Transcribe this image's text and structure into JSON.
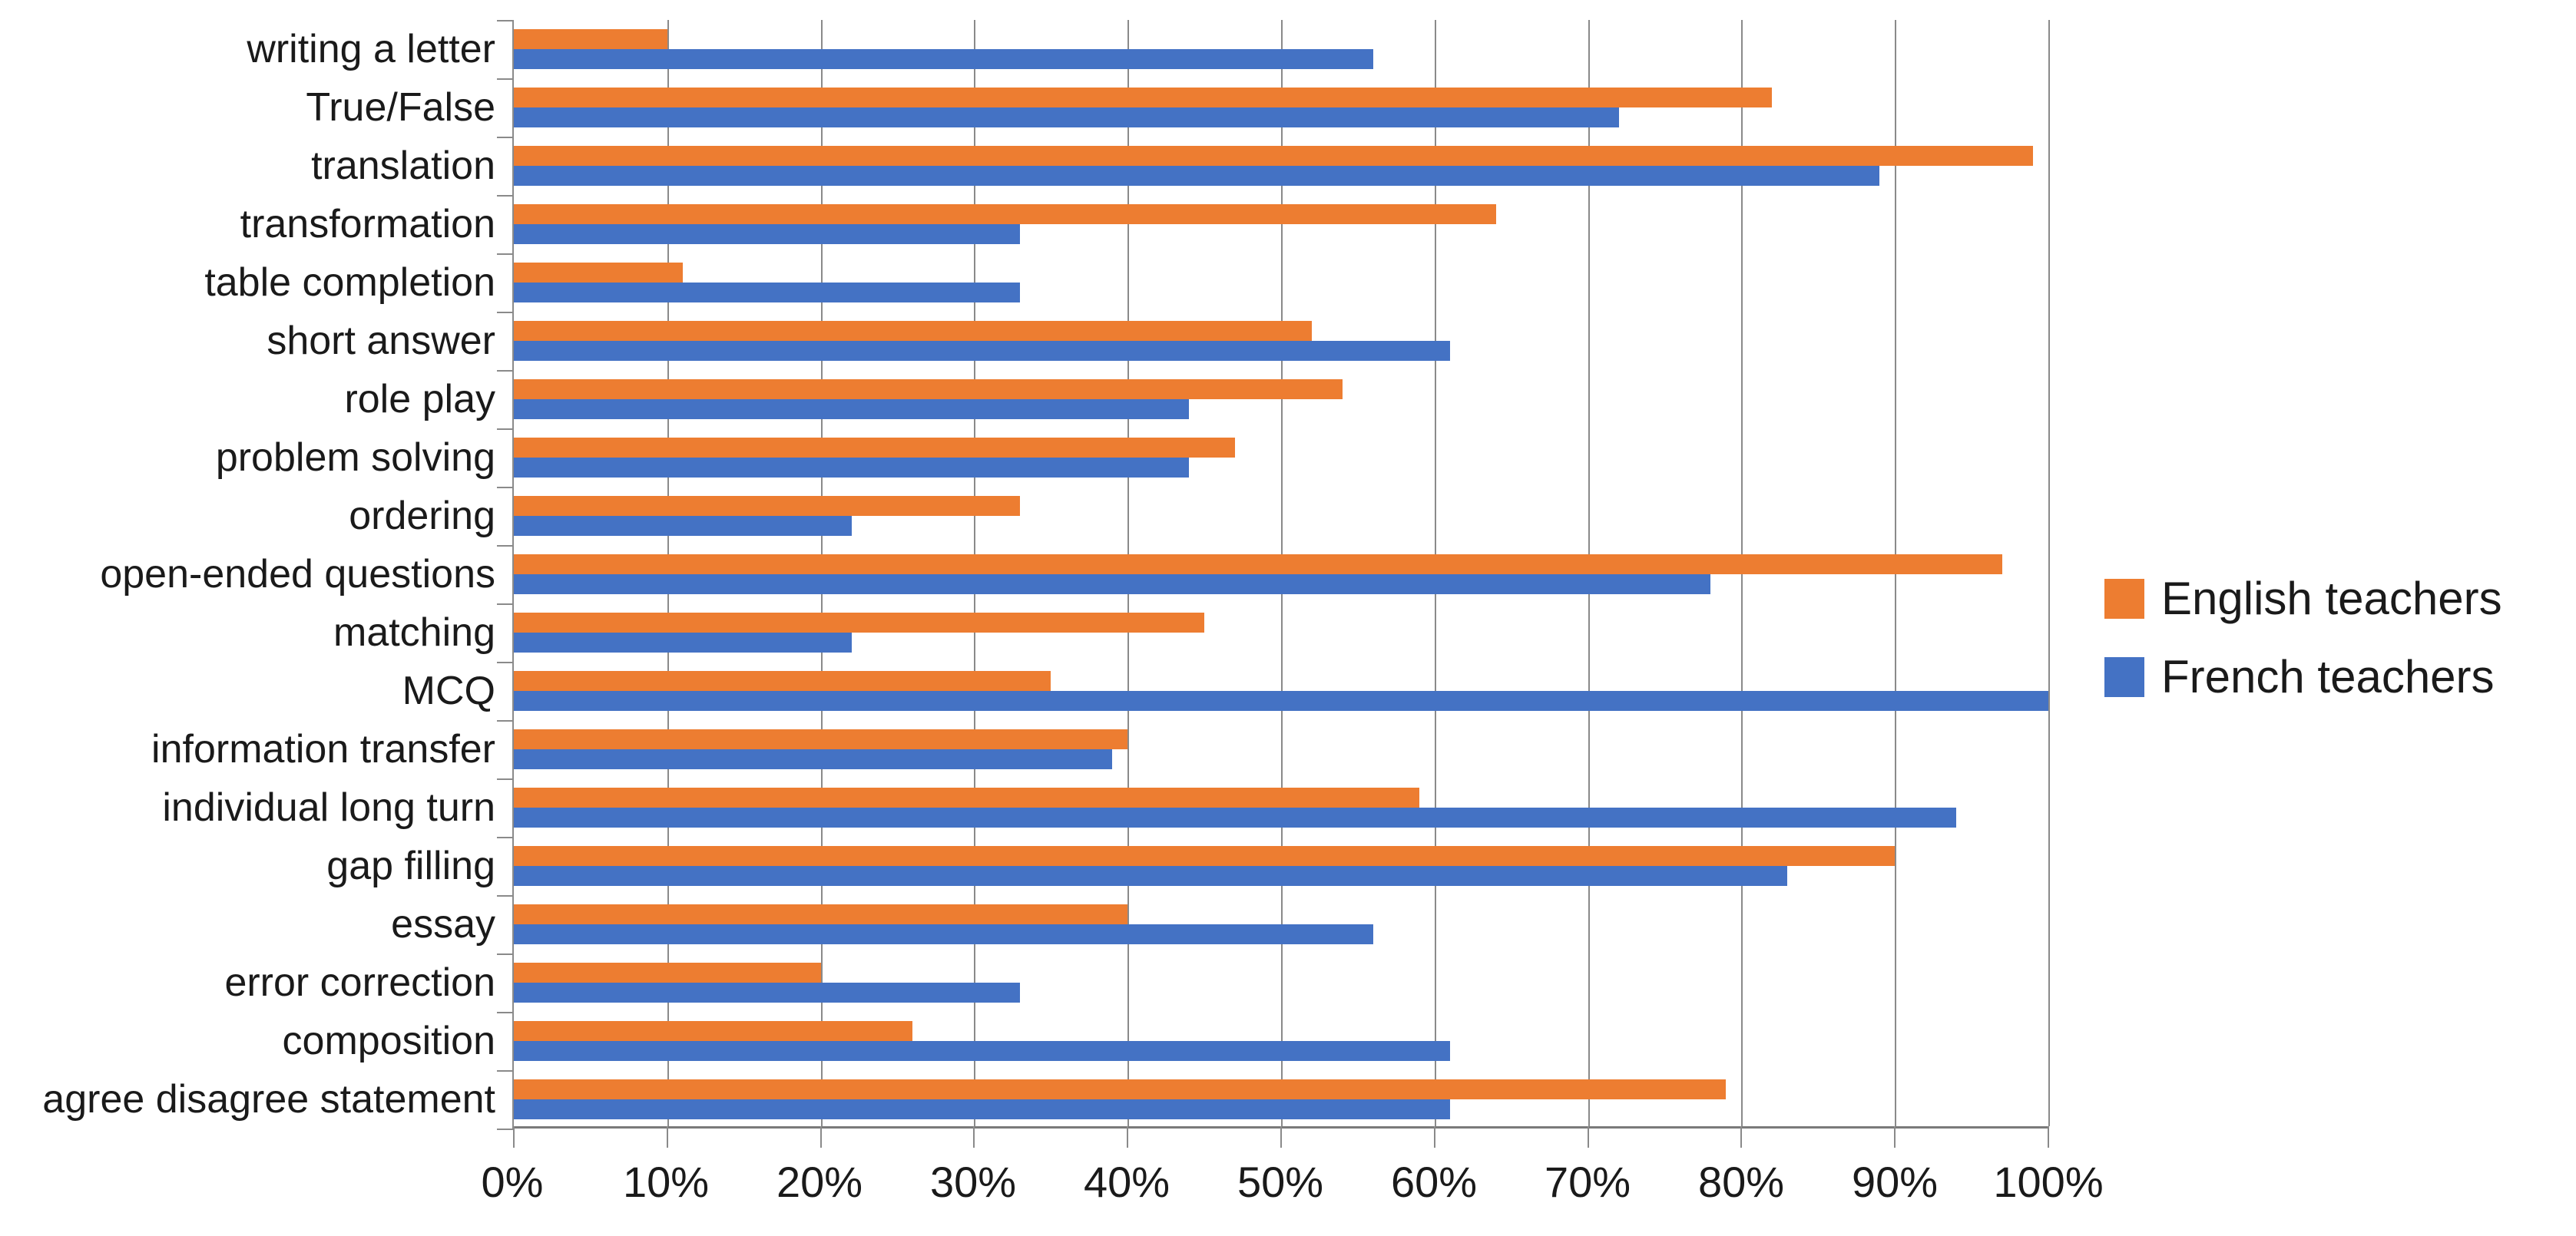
{
  "chart_data": {
    "type": "bar",
    "orientation": "horizontal",
    "title": "",
    "categories": [
      "writing a letter",
      "True/False",
      "translation",
      "transformation",
      "table completion",
      "short answer",
      "role play",
      "problem solving",
      "ordering",
      "open-ended questions",
      "matching",
      "MCQ",
      "information transfer",
      "individual long turn",
      "gap filling",
      "essay",
      "error correction",
      "composition",
      "agree disagree statement"
    ],
    "series": [
      {
        "name": "English teachers",
        "color": "#ED7D31",
        "values": [
          10,
          82,
          99,
          64,
          11,
          52,
          54,
          47,
          33,
          97,
          45,
          35,
          40,
          59,
          90,
          40,
          20,
          26,
          79
        ]
      },
      {
        "name": "French teachers",
        "color": "#4472C4",
        "values": [
          56,
          72,
          89,
          33,
          33,
          61,
          44,
          44,
          22,
          78,
          22,
          100,
          39,
          94,
          83,
          56,
          33,
          61,
          61
        ]
      }
    ],
    "x_axis": {
      "min": 0,
      "max": 100,
      "step": 10,
      "tick_labels": [
        "0%",
        "10%",
        "20%",
        "30%",
        "40%",
        "50%",
        "60%",
        "70%",
        "80%",
        "90%",
        "100%"
      ]
    },
    "legend": {
      "position": "right",
      "entries": [
        "English teachers",
        "French teachers"
      ]
    },
    "grid": {
      "vertical_gridlines": true,
      "gridline_color": "#8a8a8a",
      "axis_color": "#7a7a7a"
    },
    "background": "#ffffff",
    "text_color": "#1a1a1a"
  }
}
